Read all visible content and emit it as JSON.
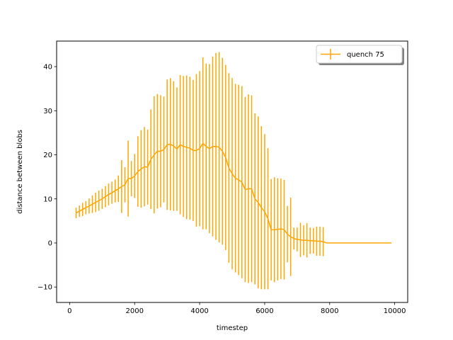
{
  "chart_data": {
    "type": "line",
    "title": "",
    "xlabel": "timestep",
    "ylabel": "distance between blobs",
    "xlim": [
      -400,
      10400
    ],
    "ylim": [
      -13.5,
      45.8
    ],
    "xticks": [
      0,
      2000,
      4000,
      6000,
      8000,
      10000
    ],
    "yticks": [
      -10,
      0,
      10,
      20,
      30,
      40
    ],
    "xtick_labels": [
      "0",
      "2000",
      "4000",
      "6000",
      "8000",
      "10000"
    ],
    "ytick_labels": [
      "−10",
      "0",
      "10",
      "20",
      "30",
      "40"
    ],
    "legend_position": "top-right",
    "series": [
      {
        "name": "quench 75",
        "color": "#ffa500",
        "points": [
          [
            200,
            6.8,
            1.2
          ],
          [
            300,
            7.2,
            1.3
          ],
          [
            400,
            7.6,
            1.5
          ],
          [
            500,
            8.0,
            1.5
          ],
          [
            600,
            8.4,
            1.7
          ],
          [
            700,
            8.8,
            2.0
          ],
          [
            800,
            9.2,
            2.2
          ],
          [
            900,
            9.6,
            2.3
          ],
          [
            1000,
            10.0,
            2.3
          ],
          [
            1100,
            10.5,
            2.4
          ],
          [
            1200,
            11.0,
            2.5
          ],
          [
            1300,
            11.4,
            2.5
          ],
          [
            1400,
            11.8,
            2.6
          ],
          [
            1500,
            12.3,
            3.0
          ],
          [
            1600,
            12.8,
            6.0
          ],
          [
            1700,
            13.2,
            4.0
          ],
          [
            1800,
            14.6,
            8.6
          ],
          [
            1900,
            14.6,
            4.0
          ],
          [
            2000,
            15.2,
            5.0
          ],
          [
            2100,
            16.2,
            8.0
          ],
          [
            2200,
            16.8,
            8.8
          ],
          [
            2300,
            17.3,
            9.0
          ],
          [
            2400,
            17.2,
            8.5
          ],
          [
            2500,
            19.0,
            11.3
          ],
          [
            2600,
            20.0,
            13.3
          ],
          [
            2700,
            20.8,
            13.0
          ],
          [
            2800,
            20.8,
            12.7
          ],
          [
            2900,
            21.2,
            12.0
          ],
          [
            3000,
            22.3,
            14.8
          ],
          [
            3100,
            22.4,
            15.0
          ],
          [
            3200,
            22.0,
            14.7
          ],
          [
            3300,
            21.3,
            14.0
          ],
          [
            3400,
            22.3,
            15.8
          ],
          [
            3500,
            21.9,
            16.0
          ],
          [
            3600,
            21.7,
            16.3
          ],
          [
            3700,
            21.5,
            16.2
          ],
          [
            3800,
            21.0,
            16.0
          ],
          [
            3900,
            21.0,
            17.3
          ],
          [
            4000,
            21.4,
            17.6
          ],
          [
            4100,
            22.6,
            19.5
          ],
          [
            4200,
            21.9,
            18.8
          ],
          [
            4300,
            21.4,
            19.2
          ],
          [
            4400,
            21.9,
            20.4
          ],
          [
            4500,
            21.9,
            21.2
          ],
          [
            4600,
            21.7,
            21.6
          ],
          [
            4700,
            20.8,
            21.2
          ],
          [
            4800,
            19.4,
            21.0
          ],
          [
            4900,
            17.0,
            21.5
          ],
          [
            5000,
            15.7,
            21.7
          ],
          [
            5100,
            14.7,
            21.4
          ],
          [
            5200,
            14.3,
            21.6
          ],
          [
            5300,
            13.8,
            21.8
          ],
          [
            5400,
            12.1,
            21.0
          ],
          [
            5500,
            12.3,
            21.4
          ],
          [
            5600,
            12.3,
            21.2
          ],
          [
            5700,
            10.0,
            19.4
          ],
          [
            5800,
            9.2,
            19.5
          ],
          [
            5900,
            8.0,
            18.5
          ],
          [
            6000,
            7.1,
            17.6
          ],
          [
            6100,
            5.5,
            16.0
          ],
          [
            6200,
            3.0,
            11.5
          ],
          [
            6300,
            3.0,
            11.9
          ],
          [
            6400,
            3.1,
            11.6
          ],
          [
            6500,
            3.2,
            11.4
          ],
          [
            6600,
            3.0,
            11.3
          ],
          [
            6700,
            2.0,
            6.4
          ],
          [
            6800,
            1.4,
            8.9
          ],
          [
            6900,
            1.0,
            2.5
          ],
          [
            7000,
            0.8,
            2.7
          ],
          [
            7100,
            0.7,
            3.9
          ],
          [
            7200,
            0.6,
            3.4
          ],
          [
            7300,
            0.6,
            3.9
          ],
          [
            7400,
            0.5,
            3.0
          ],
          [
            7500,
            0.5,
            2.9
          ],
          [
            7600,
            0.4,
            3.3
          ],
          [
            7700,
            0.4,
            3.3
          ],
          [
            7800,
            0.3,
            3.3
          ],
          [
            7900,
            0,
            0
          ],
          [
            8000,
            0,
            0
          ],
          [
            8500,
            0,
            0
          ],
          [
            9000,
            0,
            0
          ],
          [
            9500,
            0,
            0
          ],
          [
            9900,
            0,
            0
          ]
        ]
      }
    ]
  }
}
